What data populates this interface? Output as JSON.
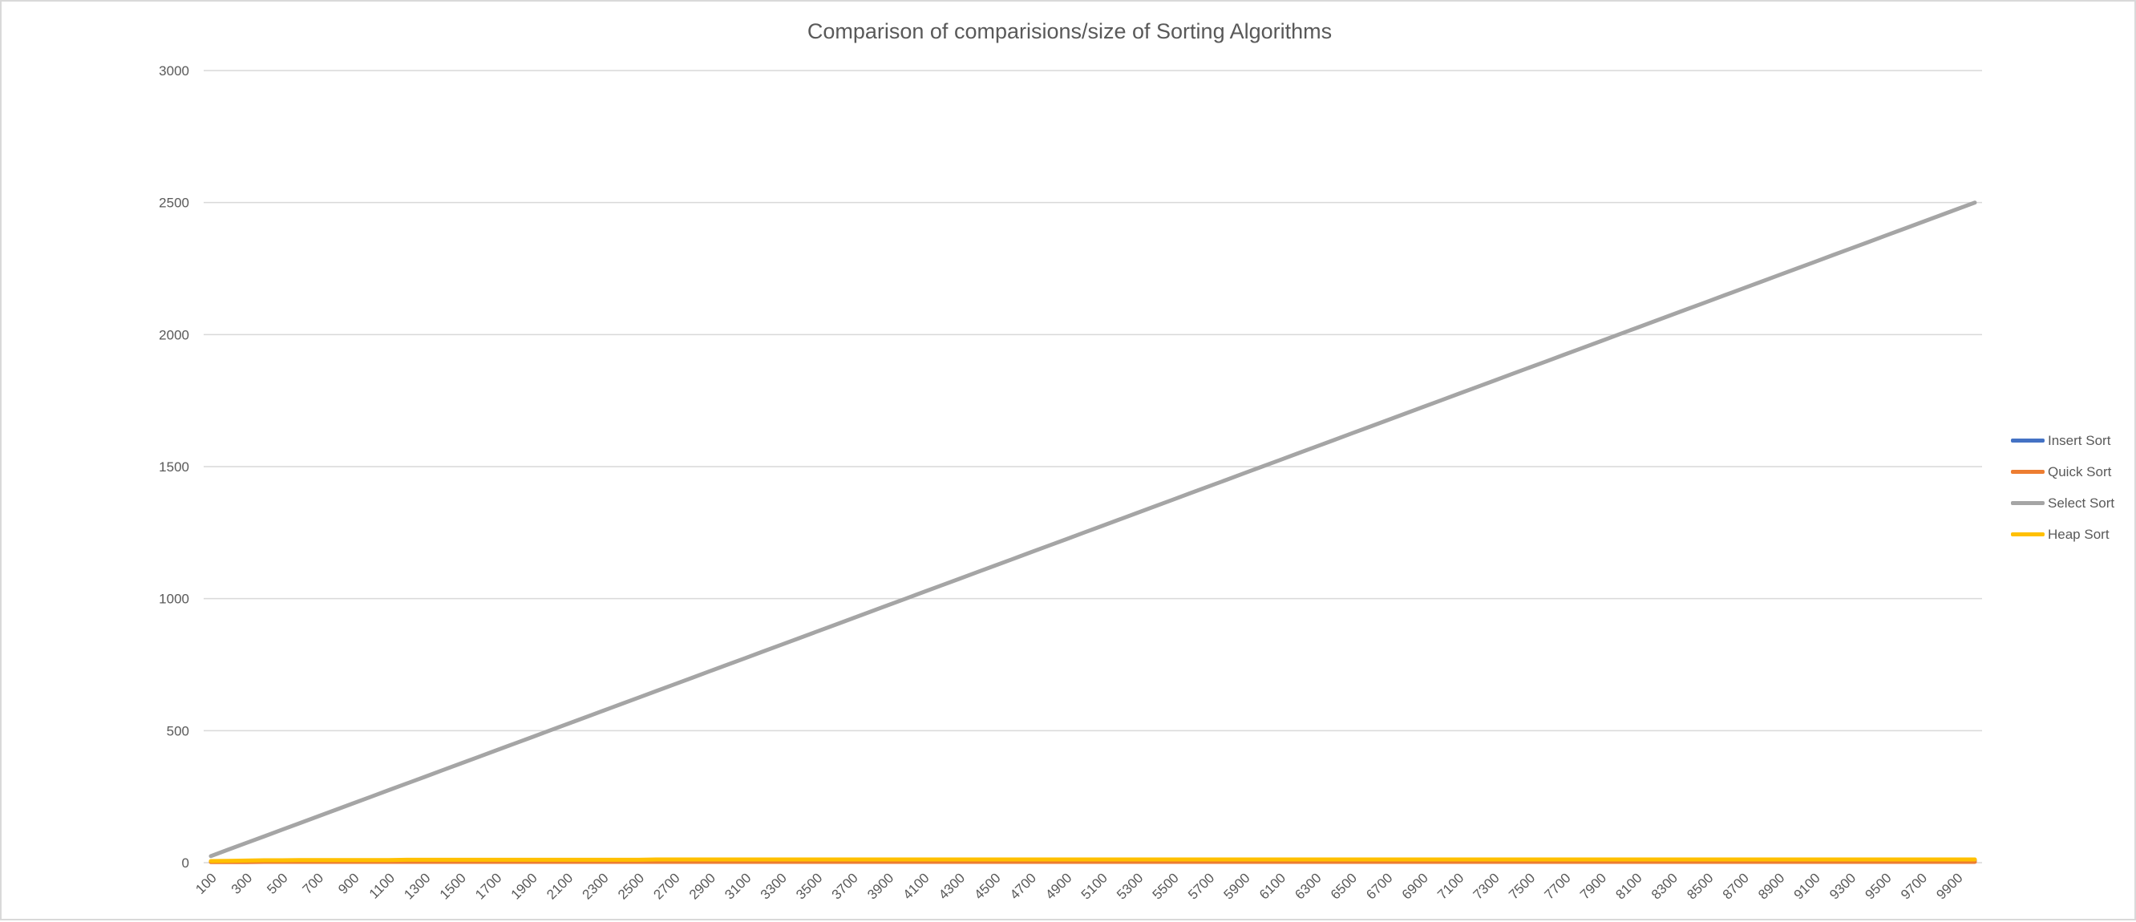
{
  "chart_data": {
    "type": "line",
    "title": "Comparison of comparisions/size of Sorting Algorithms",
    "xlabel": "",
    "ylabel": "",
    "x": [
      100,
      200,
      300,
      400,
      500,
      600,
      700,
      800,
      900,
      1000,
      1100,
      1200,
      1300,
      1400,
      1500,
      1600,
      1700,
      1800,
      1900,
      2000,
      2100,
      2200,
      2300,
      2400,
      2500,
      2600,
      2700,
      2800,
      2900,
      3000,
      3100,
      3200,
      3300,
      3400,
      3500,
      3600,
      3700,
      3800,
      3900,
      4000,
      4100,
      4200,
      4300,
      4400,
      4500,
      4600,
      4700,
      4800,
      4900,
      5000,
      5100,
      5200,
      5300,
      5400,
      5500,
      5600,
      5700,
      5800,
      5900,
      6000,
      6100,
      6200,
      6300,
      6400,
      6500,
      6600,
      6700,
      6800,
      6900,
      7000,
      7100,
      7200,
      7300,
      7400,
      7500,
      7600,
      7700,
      7800,
      7900,
      8000,
      8100,
      8200,
      8300,
      8400,
      8500,
      8600,
      8700,
      8800,
      8900,
      9000,
      9100,
      9200,
      9300,
      9400,
      9500,
      9600,
      9700,
      9800,
      9900,
      10000
    ],
    "x_tick_labels": [
      "100",
      "300",
      "500",
      "700",
      "900",
      "1100",
      "1300",
      "1500",
      "1700",
      "1900",
      "2100",
      "2300",
      "2500",
      "2700",
      "2900",
      "3100",
      "3300",
      "3500",
      "3700",
      "3900",
      "4100",
      "4300",
      "4500",
      "4700",
      "4900",
      "5100",
      "5300",
      "5500",
      "5700",
      "5900",
      "6100",
      "6300",
      "6500",
      "6700",
      "6900",
      "7100",
      "7300",
      "7500",
      "7700",
      "7900",
      "8100",
      "8300",
      "8500",
      "8700",
      "8900",
      "9100",
      "9300",
      "9500",
      "9700",
      "9900"
    ],
    "ylim": [
      0,
      3000
    ],
    "y_ticks": [
      0,
      500,
      1000,
      1500,
      2000,
      2500,
      3000
    ],
    "y_tick_labels": [
      "0",
      "500",
      "1000",
      "1500",
      "2000",
      "2500",
      "3000"
    ],
    "grid": true,
    "legend_position": "right",
    "series": [
      {
        "name": "Insert Sort",
        "color": "#4472c4",
        "values": [
          3,
          4,
          5,
          5,
          6,
          6,
          6,
          6,
          7,
          7,
          7,
          7,
          7,
          7,
          7,
          7,
          8,
          8,
          8,
          8,
          8,
          8,
          8,
          8,
          8,
          8,
          8,
          8,
          8,
          8,
          8,
          8,
          8,
          8,
          8,
          9,
          9,
          9,
          9,
          9,
          9,
          9,
          9,
          9,
          9,
          9,
          9,
          9,
          9,
          9,
          9,
          9,
          9,
          9,
          9,
          9,
          9,
          9,
          9,
          9,
          9,
          9,
          9,
          9,
          9,
          9,
          9,
          9,
          9,
          9,
          9,
          9,
          9,
          9,
          9,
          9,
          9,
          9,
          9,
          9,
          9,
          9,
          9,
          9,
          9,
          9,
          9,
          9,
          9,
          9,
          9,
          9,
          9,
          9,
          9,
          9,
          9,
          9,
          9,
          9
        ]
      },
      {
        "name": "Quick Sort",
        "color": "#ed7d31",
        "values": [
          2,
          2,
          2,
          3,
          3,
          3,
          3,
          3,
          3,
          3,
          3,
          3,
          3,
          3,
          3,
          3,
          3,
          3,
          3,
          3,
          3,
          3,
          3,
          3,
          3,
          3,
          3,
          3,
          3,
          3,
          3,
          3,
          3,
          3,
          3,
          3,
          3,
          3,
          3,
          3,
          3,
          3,
          3,
          3,
          3,
          3,
          3,
          3,
          3,
          3,
          3,
          3,
          3,
          3,
          3,
          3,
          3,
          3,
          3,
          3,
          3,
          3,
          3,
          3,
          3,
          3,
          3,
          3,
          3,
          3,
          3,
          3,
          3,
          3,
          3,
          3,
          3,
          3,
          3,
          3,
          3,
          3,
          3,
          3,
          3,
          3,
          3,
          3,
          3,
          3,
          3,
          3,
          3,
          3,
          3,
          3,
          3,
          3,
          3,
          3
        ]
      },
      {
        "name": "Select Sort",
        "color": "#a5a5a5",
        "values": [
          25,
          50,
          75,
          100,
          125,
          150,
          175,
          200,
          225,
          250,
          275,
          300,
          325,
          350,
          375,
          400,
          425,
          450,
          475,
          500,
          525,
          550,
          575,
          600,
          625,
          650,
          675,
          700,
          725,
          750,
          775,
          800,
          825,
          850,
          875,
          900,
          925,
          950,
          975,
          1000,
          1025,
          1050,
          1075,
          1100,
          1125,
          1150,
          1175,
          1200,
          1225,
          1250,
          1275,
          1300,
          1325,
          1350,
          1375,
          1400,
          1425,
          1450,
          1475,
          1500,
          1525,
          1550,
          1575,
          1600,
          1625,
          1650,
          1675,
          1700,
          1725,
          1750,
          1775,
          1800,
          1825,
          1850,
          1875,
          1900,
          1925,
          1950,
          1975,
          2000,
          2025,
          2050,
          2075,
          2100,
          2125,
          2150,
          2175,
          2200,
          2225,
          2250,
          2275,
          2300,
          2325,
          2350,
          2375,
          2400,
          2425,
          2450,
          2475,
          2500
        ]
      },
      {
        "name": "Heap Sort",
        "color": "#ffc000",
        "values": [
          6,
          7,
          8,
          9,
          9,
          10,
          10,
          10,
          10,
          10,
          10,
          11,
          11,
          11,
          11,
          11,
          11,
          11,
          11,
          11,
          11,
          11,
          11,
          11,
          11,
          12,
          12,
          12,
          12,
          12,
          12,
          12,
          12,
          12,
          12,
          12,
          12,
          12,
          12,
          12,
          12,
          12,
          12,
          12,
          12,
          12,
          12,
          12,
          12,
          12,
          12,
          12,
          12,
          12,
          12,
          12,
          12,
          12,
          12,
          12,
          12,
          12,
          12,
          12,
          12,
          12,
          12,
          12,
          12,
          12,
          12,
          12,
          12,
          12,
          12,
          12,
          12,
          12,
          12,
          12,
          12,
          12,
          12,
          12,
          12,
          12,
          12,
          12,
          12,
          12,
          12,
          12,
          12,
          12,
          12,
          12,
          12,
          12,
          12,
          12
        ]
      }
    ]
  }
}
